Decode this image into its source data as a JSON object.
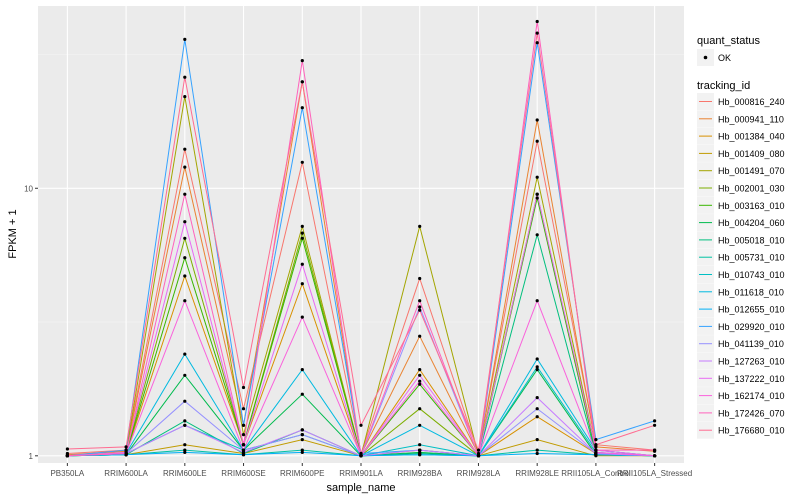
{
  "chart_data": {
    "type": "line",
    "xlabel": "sample_name",
    "ylabel": "FPKM + 1",
    "y_scale": "log",
    "ylim": [
      0.94,
      48
    ],
    "y_ticks": [
      1,
      10
    ],
    "y_tick_labels": [
      "1",
      "10"
    ],
    "grid": true,
    "legend_placement": "right",
    "point_legend": {
      "title": "quant_status",
      "entries": [
        "OK"
      ]
    },
    "color_legend_title": "tracking_id",
    "categories": [
      "PB350LA",
      "RRIM600LA",
      "RRIM600LE",
      "RRIM600SE",
      "RRIM600PE",
      "RRIM901LA",
      "RRIM928BA",
      "RRIM928LA",
      "RRIM928LE",
      "RRII105LA_Control",
      "RRII105LA_Stressed"
    ],
    "series": [
      {
        "name": "Hb_000816_240",
        "color": "#F8766D",
        "values": [
          1.02,
          1.05,
          14,
          1.5,
          12.5,
          1.02,
          4.6,
          1.02,
          15,
          1.1,
          1.05
        ]
      },
      {
        "name": "Hb_000941_110",
        "color": "#EA8331",
        "values": [
          1.01,
          1.04,
          12,
          1.3,
          25,
          1.01,
          2.8,
          1.01,
          18,
          1.08,
          1.04
        ]
      },
      {
        "name": "Hb_001384_040",
        "color": "#D89000",
        "values": [
          1.0,
          1.02,
          4.7,
          1.1,
          4.4,
          1.0,
          2.1,
          1.0,
          1.4,
          1.02,
          1.0
        ]
      },
      {
        "name": "Hb_001409_080",
        "color": "#C09B00",
        "values": [
          1.0,
          1.01,
          1.1,
          1.02,
          1.15,
          1.0,
          1.05,
          1.0,
          1.15,
          1.0,
          1.0
        ]
      },
      {
        "name": "Hb_001491_070",
        "color": "#A3A500",
        "values": [
          1.0,
          1.03,
          22,
          1.2,
          7.2,
          1.0,
          7.2,
          1.0,
          11,
          1.05,
          1.0
        ]
      },
      {
        "name": "Hb_002001_030",
        "color": "#7CAE00",
        "values": [
          1.0,
          1.02,
          6.5,
          1.1,
          6.8,
          1.0,
          1.5,
          1.0,
          9.5,
          1.02,
          1.0
        ]
      },
      {
        "name": "Hb_003163_010",
        "color": "#39B600",
        "values": [
          1.0,
          1.02,
          5.5,
          1.1,
          6.5,
          1.0,
          1.85,
          1.0,
          9.2,
          1.02,
          1.0
        ]
      },
      {
        "name": "Hb_004204_060",
        "color": "#00BB4E",
        "values": [
          1.0,
          1.01,
          2.0,
          1.05,
          1.7,
          1.0,
          1.03,
          1.0,
          2.1,
          1.01,
          1.0
        ]
      },
      {
        "name": "Hb_005018_010",
        "color": "#00BF7D",
        "values": [
          1.0,
          1.01,
          1.35,
          1.02,
          1.25,
          1.0,
          1.02,
          1.0,
          6.7,
          1.01,
          1.0
        ]
      },
      {
        "name": "Hb_005731_010",
        "color": "#00C1A3",
        "values": [
          1.0,
          1.01,
          1.05,
          1.01,
          1.05,
          1.0,
          1.01,
          1.0,
          1.05,
          1.01,
          1.0
        ]
      },
      {
        "name": "Hb_010743_010",
        "color": "#00BFC4",
        "values": [
          1.0,
          1.02,
          1.3,
          1.05,
          1.2,
          1.0,
          1.1,
          1.0,
          2.15,
          1.03,
          1.0
        ]
      },
      {
        "name": "Hb_011618_010",
        "color": "#00BAE0",
        "values": [
          1.0,
          1.02,
          2.4,
          1.05,
          2.1,
          1.0,
          1.3,
          1.0,
          2.3,
          1.05,
          1.0
        ]
      },
      {
        "name": "Hb_012655_010",
        "color": "#00B0F6",
        "values": [
          1.0,
          1.01,
          1.03,
          1.01,
          1.03,
          1.0,
          1.01,
          1.0,
          1.02,
          1.01,
          1.0
        ]
      },
      {
        "name": "Hb_029920_010",
        "color": "#35A2FF",
        "values": [
          1.0,
          1.05,
          36,
          1.3,
          20,
          1.02,
          1.05,
          1.0,
          35,
          1.15,
          1.35
        ]
      },
      {
        "name": "Hb_041139_010",
        "color": "#9590FF",
        "values": [
          1.0,
          1.02,
          1.6,
          1.05,
          1.2,
          1.0,
          3.6,
          1.0,
          1.5,
          1.02,
          1.0
        ]
      },
      {
        "name": "Hb_127263_010",
        "color": "#C77CFF",
        "values": [
          1.0,
          1.02,
          1.3,
          1.03,
          1.25,
          1.0,
          1.05,
          1.0,
          1.65,
          1.02,
          1.0
        ]
      },
      {
        "name": "Hb_137222_010",
        "color": "#E76BF3",
        "values": [
          1.0,
          1.03,
          7.5,
          1.1,
          5.2,
          1.0,
          2.0,
          1.0,
          9.5,
          1.05,
          1.0
        ]
      },
      {
        "name": "Hb_162174_010",
        "color": "#FA62DB",
        "values": [
          1.0,
          1.02,
          3.8,
          1.05,
          3.3,
          1.0,
          1.9,
          1.0,
          3.8,
          1.03,
          1.0
        ]
      },
      {
        "name": "Hb_172426_070",
        "color": "#FF62BC",
        "values": [
          1.0,
          1.02,
          9.5,
          1.1,
          30,
          1.01,
          3.8,
          1.0,
          42,
          1.05,
          1.05
        ]
      },
      {
        "name": "Hb_176680_010",
        "color": "#FF6C91",
        "values": [
          1.06,
          1.08,
          26,
          1.8,
          25,
          1.3,
          3.5,
          1.05,
          38,
          1.1,
          1.3
        ]
      }
    ]
  }
}
